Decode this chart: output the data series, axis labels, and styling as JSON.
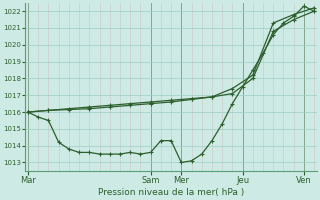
{
  "xlabel": "Pression niveau de la mer( hPa )",
  "background_color": "#ceeae5",
  "grid_color": "#9ecdc6",
  "line_color": "#2d5e2d",
  "ylim": [
    1012.5,
    1022.5
  ],
  "yticks": [
    1013,
    1014,
    1015,
    1016,
    1017,
    1018,
    1019,
    1020,
    1021,
    1022
  ],
  "xlim": [
    -0.3,
    28.3
  ],
  "day_labels": [
    "Mar",
    "Sam",
    "Mer",
    "Jeu",
    "Ven"
  ],
  "day_positions": [
    0,
    12,
    15,
    21,
    27
  ],
  "series1_x": [
    0,
    1,
    2,
    3,
    4,
    5,
    6,
    7,
    8,
    9,
    10,
    11,
    12,
    13,
    14,
    15,
    16,
    17,
    18,
    19,
    20,
    21,
    22,
    23,
    24,
    25,
    26,
    27,
    28
  ],
  "series1_y": [
    1016.0,
    1015.7,
    1015.5,
    1014.2,
    1013.8,
    1013.6,
    1013.6,
    1013.5,
    1013.5,
    1013.5,
    1013.6,
    1013.5,
    1013.6,
    1014.3,
    1014.3,
    1013.0,
    1013.1,
    1013.5,
    1014.3,
    1015.3,
    1016.5,
    1017.5,
    1018.5,
    1019.5,
    1020.6,
    1021.3,
    1021.7,
    1022.3,
    1022.0
  ],
  "series2_x": [
    0,
    2,
    4,
    6,
    8,
    10,
    12,
    14,
    16,
    18,
    20,
    22,
    24,
    26,
    28
  ],
  "series2_y": [
    1016.0,
    1016.1,
    1016.2,
    1016.3,
    1016.4,
    1016.5,
    1016.6,
    1016.7,
    1016.8,
    1016.9,
    1017.1,
    1018.0,
    1020.8,
    1021.5,
    1022.0
  ],
  "series3_x": [
    0,
    2,
    4,
    6,
    8,
    10,
    12,
    14,
    16,
    18,
    20,
    22,
    24,
    26,
    28
  ],
  "series3_y": [
    1016.0,
    1016.1,
    1016.15,
    1016.2,
    1016.3,
    1016.4,
    1016.5,
    1016.6,
    1016.75,
    1016.9,
    1017.4,
    1018.2,
    1021.3,
    1021.8,
    1022.2
  ]
}
